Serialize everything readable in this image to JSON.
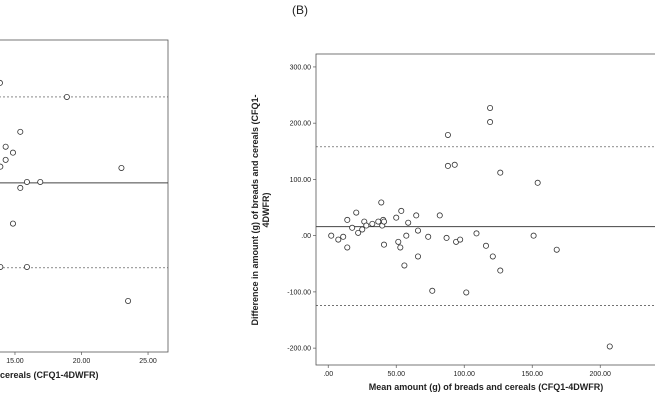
{
  "chart_data": [
    {
      "type": "scatter",
      "x_label": "cereals (CFQ1-4DWFR)",
      "x": [
        13.87,
        18.9,
        15.4,
        14.3,
        14.85,
        14.3,
        13.9,
        23.0,
        15.4,
        15.9,
        16.9,
        14.85,
        13.9,
        15.9,
        23.5
      ],
      "values": [
        2.35,
        2.02,
        1.2,
        0.85,
        0.71,
        0.54,
        0.38,
        0.35,
        -0.12,
        0.02,
        0.02,
        -0.96,
        -1.98,
        -1.98,
        -2.78
      ],
      "mean_line": 0,
      "limit_lines": [
        2.02,
        -2.0
      ],
      "xlim": [
        13.8,
        26.5
      ],
      "ylim": [
        -3.98,
        3.36
      ],
      "xticks": [
        {
          "value": 15,
          "label": "15.00"
        },
        {
          "value": 20,
          "label": "20.00"
        },
        {
          "value": 25,
          "label": "25.00"
        }
      ]
    },
    {
      "type": "scatter",
      "title": "(B)",
      "x_label": "Mean amount (g) of breads and cereals (CFQ1-4DWFR)",
      "y_label": [
        "Difference in amount (g) of breads and cereals  (CFQ1-",
        "4DWFR)"
      ],
      "x": [
        2.2,
        7.4,
        11,
        14,
        14,
        17.6,
        20.6,
        22,
        25,
        26.5,
        28,
        32.4,
        36.8,
        39,
        39.7,
        40.4,
        41,
        41,
        50,
        51.5,
        53.7,
        53,
        56,
        57.4,
        58.8,
        64.7,
        66,
        66,
        73.5,
        76.5,
        82,
        87,
        88,
        88,
        93,
        94,
        97,
        101.5,
        109,
        116,
        119,
        119,
        121,
        126.5,
        126.5,
        151,
        154,
        168,
        207
      ],
      "values": [
        0,
        -7,
        -2,
        -21,
        28,
        14,
        41,
        5,
        11,
        25,
        18,
        21,
        25,
        59,
        18,
        28,
        25,
        -16,
        32,
        -11,
        44,
        -21,
        -53,
        0,
        23,
        36,
        9,
        -37,
        -2,
        -98,
        36,
        -4,
        179,
        124,
        126,
        -11,
        -7,
        -101,
        4,
        -18,
        227,
        202,
        -37,
        112,
        -62,
        0,
        94,
        -25,
        -197
      ],
      "mean_line": 16,
      "limit_lines": [
        158,
        -124
      ],
      "xlim": [
        -9,
        241
      ],
      "ylim": [
        -230,
        323
      ],
      "xticks": [
        {
          "value": 0,
          "label": ".00"
        },
        {
          "value": 50,
          "label": "50.00"
        },
        {
          "value": 100,
          "label": "100.00"
        },
        {
          "value": 150,
          "label": "150.00"
        },
        {
          "value": 200,
          "label": "200.00"
        }
      ],
      "yticks": [
        {
          "value": 300,
          "label": "300.00"
        },
        {
          "value": 200,
          "label": "200.00"
        },
        {
          "value": 100,
          "label": "100.00"
        },
        {
          "value": 0,
          "label": ".00"
        },
        {
          "value": -100,
          "label": "-100.00"
        },
        {
          "value": -200,
          "label": "-200.00"
        }
      ]
    }
  ]
}
